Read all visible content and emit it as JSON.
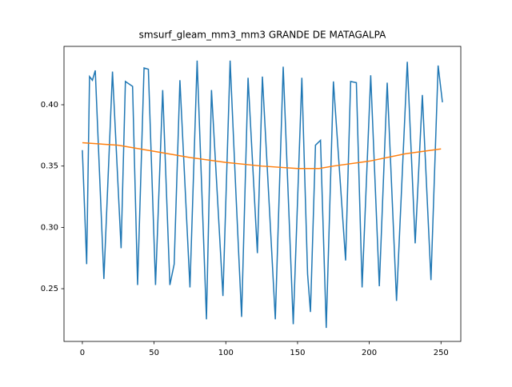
{
  "chart_data": {
    "type": "line",
    "title": "smsurf_gleam_mm3_mm3 GRANDE DE MATAGALPA",
    "series": [
      {
        "color": "#1f77b4",
        "x": [
          0,
          3,
          5,
          7,
          9,
          15,
          21,
          27,
          30,
          35,
          38.5,
          43,
          46,
          51,
          56,
          61,
          64,
          68,
          75,
          80,
          86.5,
          90,
          98,
          103,
          107,
          111,
          115.5,
          122,
          125.5,
          134.5,
          140,
          147,
          153,
          157,
          159,
          162.5,
          166,
          170,
          175,
          183.5,
          187,
          191,
          195,
          201,
          207,
          212.5,
          219,
          226.5,
          232,
          237,
          243,
          248,
          251
        ],
        "values": [
          0.363,
          0.27,
          0.423,
          0.42,
          0.428,
          0.258,
          0.427,
          0.283,
          0.419,
          0.415,
          0.253,
          0.43,
          0.429,
          0.253,
          0.412,
          0.253,
          0.27,
          0.42,
          0.251,
          0.436,
          0.225,
          0.412,
          0.244,
          0.436,
          0.329,
          0.227,
          0.422,
          0.279,
          0.423,
          0.225,
          0.431,
          0.221,
          0.422,
          0.262,
          0.231,
          0.367,
          0.371,
          0.218,
          0.419,
          0.273,
          0.419,
          0.418,
          0.251,
          0.424,
          0.252,
          0.418,
          0.24,
          0.435,
          0.287,
          0.408,
          0.257,
          0.432,
          0.402
        ]
      },
      {
        "color": "#ff7f0e",
        "x": [
          0,
          25,
          50,
          75,
          100,
          125,
          150,
          165,
          175,
          200,
          225,
          250
        ],
        "values": [
          0.369,
          0.367,
          0.362,
          0.357,
          0.353,
          0.35,
          0.348,
          0.348,
          0.35,
          0.354,
          0.36,
          0.364
        ]
      }
    ],
    "xlim": [
      -12.8,
      263.8
    ],
    "xticks": [
      0,
      50,
      100,
      150,
      200,
      250
    ],
    "ylim": [
      0.207,
      0.4476
    ],
    "yticks": [
      0.25,
      {
        "value": 0.3,
        "label": "0.30"
      },
      0.35,
      {
        "value": 0.4,
        "label": "0.40"
      }
    ]
  }
}
